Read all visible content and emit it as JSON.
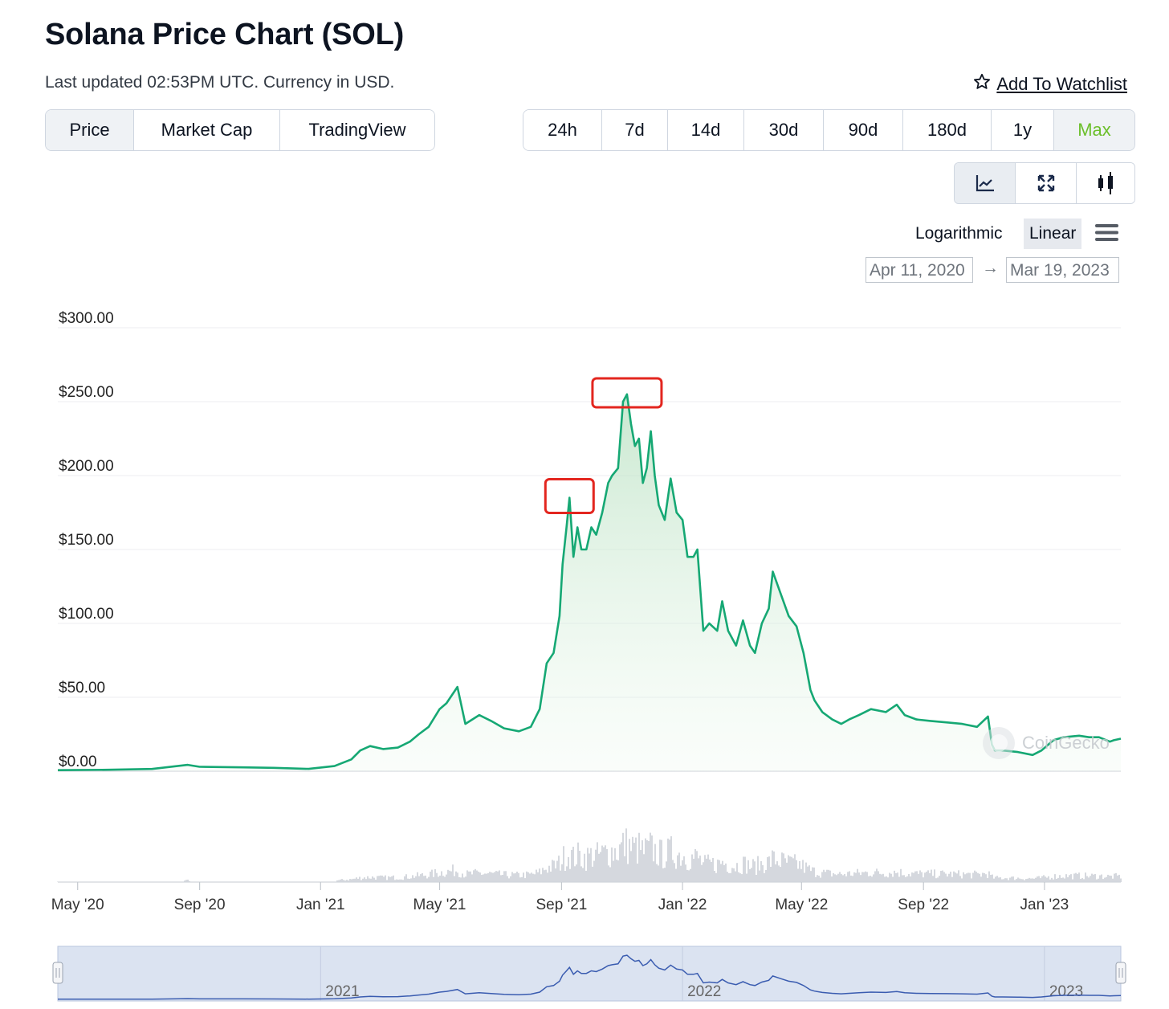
{
  "header": {
    "title": "Solana Price Chart (SOL)",
    "subtitle": "Last updated 02:53PM UTC. Currency in USD.",
    "watchlist_label": "Add To Watchlist"
  },
  "view_tabs": [
    {
      "label": "Price",
      "active": true
    },
    {
      "label": "Market Cap",
      "active": false
    },
    {
      "label": "TradingView",
      "active": false
    }
  ],
  "range_tabs": [
    {
      "label": "24h",
      "active": false
    },
    {
      "label": "7d",
      "active": false
    },
    {
      "label": "14d",
      "active": false
    },
    {
      "label": "30d",
      "active": false
    },
    {
      "label": "90d",
      "active": false
    },
    {
      "label": "180d",
      "active": false
    },
    {
      "label": "1y",
      "active": false
    },
    {
      "label": "Max",
      "active": true
    }
  ],
  "chart_tools": [
    {
      "icon": "line-chart-icon",
      "active": true
    },
    {
      "icon": "expand-icon",
      "active": false
    },
    {
      "icon": "candlestick-icon",
      "active": false
    }
  ],
  "scale": {
    "logarithmic_label": "Logarithmic",
    "linear_label": "Linear",
    "selected": "Linear"
  },
  "date_range": {
    "from": "Apr 11, 2020",
    "to": "Mar 19, 2023",
    "arrow": "→"
  },
  "watermark": "CoinGecko",
  "colors": {
    "line": "#16a874",
    "accent_green": "#6bbf2a",
    "highlight_box": "#e3261f",
    "navigator": "#3a5cb0",
    "volume": "#c3c8cf"
  },
  "chart_data": {
    "type": "area",
    "title": "",
    "xlabel": "",
    "ylabel": "",
    "y_tick_labels": [
      "$300.00",
      "$250.00",
      "$200.00",
      "$150.00",
      "$100.00",
      "$50.00",
      "$0.00"
    ],
    "y_ticks": [
      300,
      250,
      200,
      150,
      100,
      50,
      0
    ],
    "ylim": [
      0,
      300
    ],
    "x_tick_labels": [
      "May '20",
      "Sep '20",
      "Jan '21",
      "May '21",
      "Sep '21",
      "Jan '22",
      "May '22",
      "Sep '22",
      "Jan '23"
    ],
    "x_tick_dates": [
      "2020-05-01",
      "2020-09-01",
      "2021-01-01",
      "2021-05-01",
      "2021-09-01",
      "2022-01-01",
      "2022-05-01",
      "2022-09-01",
      "2023-01-01"
    ],
    "x_range": [
      "2020-04-11",
      "2023-03-19"
    ],
    "navigator_labels": [
      "2021",
      "2022",
      "2023"
    ],
    "navigator_dates": [
      "2021-01-01",
      "2022-01-01",
      "2023-01-01"
    ],
    "grid": true,
    "legend": "none",
    "series": [
      {
        "x": [
          "2020-04-11",
          "2020-06-01",
          "2020-07-15",
          "2020-08-20",
          "2020-09-01",
          "2020-10-15",
          "2020-11-15",
          "2020-12-20",
          "2021-01-15",
          "2021-02-01",
          "2021-02-10",
          "2021-02-20",
          "2021-03-05",
          "2021-03-20",
          "2021-04-01",
          "2021-04-10",
          "2021-04-20",
          "2021-05-01",
          "2021-05-08",
          "2021-05-19",
          "2021-05-27",
          "2021-06-10",
          "2021-06-22",
          "2021-07-05",
          "2021-07-20",
          "2021-08-01",
          "2021-08-10",
          "2021-08-17",
          "2021-08-24",
          "2021-08-30",
          "2021-09-02",
          "2021-09-06",
          "2021-09-09",
          "2021-09-13",
          "2021-09-17",
          "2021-09-21",
          "2021-09-26",
          "2021-10-01",
          "2021-10-06",
          "2021-10-12",
          "2021-10-18",
          "2021-10-22",
          "2021-10-28",
          "2021-11-02",
          "2021-11-06",
          "2021-11-10",
          "2021-11-14",
          "2021-11-18",
          "2021-11-22",
          "2021-11-26",
          "2021-11-30",
          "2021-12-04",
          "2021-12-08",
          "2021-12-14",
          "2021-12-20",
          "2021-12-26",
          "2022-01-01",
          "2022-01-06",
          "2022-01-12",
          "2022-01-16",
          "2022-01-22",
          "2022-01-28",
          "2022-02-05",
          "2022-02-10",
          "2022-02-16",
          "2022-02-24",
          "2022-03-03",
          "2022-03-10",
          "2022-03-15",
          "2022-03-22",
          "2022-03-29",
          "2022-04-02",
          "2022-04-10",
          "2022-04-18",
          "2022-04-26",
          "2022-05-03",
          "2022-05-10",
          "2022-05-14",
          "2022-05-22",
          "2022-06-01",
          "2022-06-10",
          "2022-06-18",
          "2022-06-28",
          "2022-07-10",
          "2022-07-25",
          "2022-08-05",
          "2022-08-13",
          "2022-08-25",
          "2022-09-08",
          "2022-09-25",
          "2022-10-10",
          "2022-10-25",
          "2022-11-05",
          "2022-11-09",
          "2022-11-12",
          "2022-11-20",
          "2022-12-05",
          "2022-12-20",
          "2022-12-29",
          "2023-01-10",
          "2023-01-20",
          "2023-02-05",
          "2023-02-15",
          "2023-02-25",
          "2023-03-08",
          "2023-03-12",
          "2023-03-19"
        ],
        "y": [
          0.7,
          1.0,
          1.5,
          4.3,
          3.0,
          2.6,
          2.3,
          1.6,
          3.5,
          8.0,
          14,
          17,
          15,
          16,
          20,
          25,
          30,
          42,
          46,
          57,
          32,
          38,
          34,
          29,
          27,
          30,
          42,
          73,
          80,
          105,
          140,
          165,
          185,
          145,
          165,
          150,
          150,
          165,
          160,
          175,
          195,
          200,
          205,
          250,
          255,
          235,
          220,
          225,
          195,
          205,
          230,
          200,
          180,
          170,
          198,
          175,
          170,
          145,
          145,
          150,
          95,
          100,
          95,
          115,
          95,
          85,
          102,
          85,
          80,
          100,
          110,
          135,
          120,
          105,
          98,
          80,
          55,
          48,
          40,
          35,
          32,
          35,
          38,
          42,
          40,
          45,
          38,
          35,
          34,
          33,
          32,
          30,
          37,
          18,
          14,
          14,
          13,
          11,
          14,
          21,
          23,
          24,
          23,
          23,
          20,
          21,
          22
        ]
      }
    ]
  }
}
